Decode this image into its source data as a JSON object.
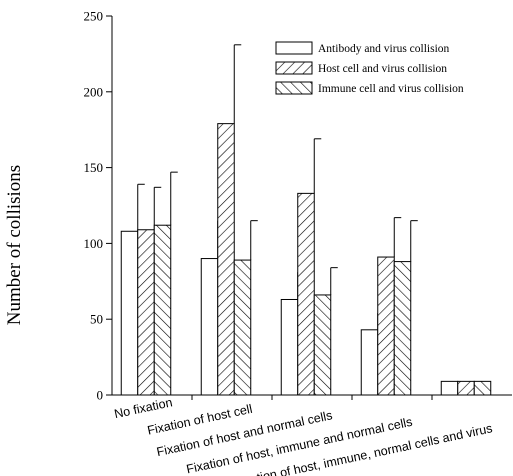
{
  "chart_data": {
    "type": "bar",
    "ylabel": "Number of collisions",
    "xlabel": "",
    "title": "",
    "ylim": [
      0,
      250
    ],
    "yticks": [
      0,
      50,
      100,
      150,
      200,
      250
    ],
    "grid": false,
    "legend_position": "top-right",
    "categories": [
      "No fixation",
      "Fixation of host cell",
      "Fixation of host and normal cells",
      "Fixation of host, immune and normal cells",
      "Fixation of host, immune, normal cells and virus"
    ],
    "series": [
      {
        "name": "Antibody and virus collision",
        "pattern": "none",
        "values": [
          108,
          90,
          63,
          43,
          9
        ],
        "errors": [
          31,
          25,
          18,
          11,
          0
        ]
      },
      {
        "name": "Host cell and virus collision",
        "pattern": "forward-diagonal",
        "values": [
          109,
          179,
          133,
          91,
          9
        ],
        "errors": [
          28,
          52,
          36,
          26,
          0
        ]
      },
      {
        "name": "Immune cell and virus collision",
        "pattern": "backward-diagonal",
        "values": [
          112,
          89,
          66,
          88,
          9
        ],
        "errors": [
          35,
          26,
          18,
          27,
          0
        ]
      }
    ]
  }
}
